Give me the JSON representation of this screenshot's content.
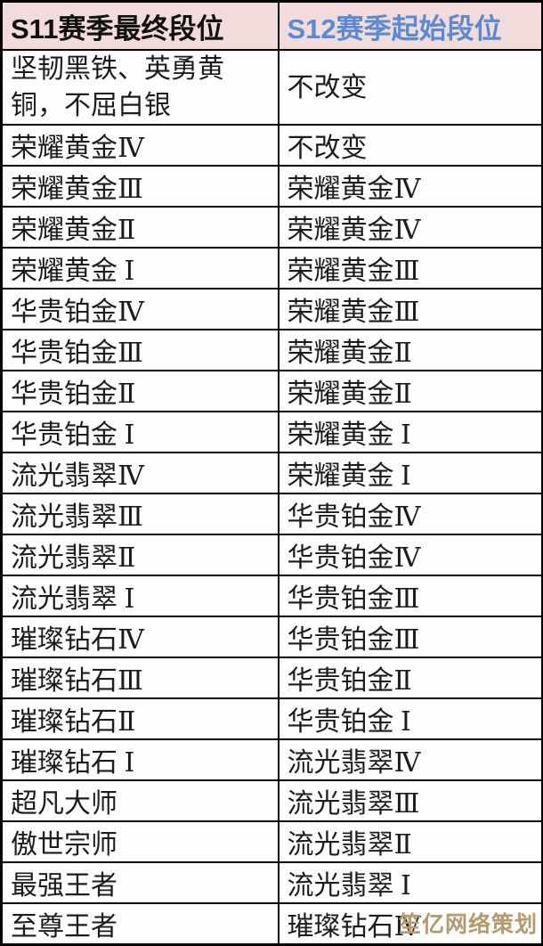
{
  "table": {
    "headers": {
      "s11": "S11赛季最终段位",
      "s12": "S12赛季起始段位"
    },
    "rows": [
      {
        "s11": "坚韧黑铁、英勇黄铜，不屈白银",
        "s12": "不改变"
      },
      {
        "s11": "荣耀黄金Ⅳ",
        "s12": "不改变"
      },
      {
        "s11": "荣耀黄金Ⅲ",
        "s12": "荣耀黄金Ⅳ"
      },
      {
        "s11": "荣耀黄金Ⅱ",
        "s12": "荣耀黄金Ⅳ"
      },
      {
        "s11": "荣耀黄金 Ⅰ",
        "s12": "荣耀黄金Ⅲ"
      },
      {
        "s11": "华贵铂金Ⅳ",
        "s12": "荣耀黄金Ⅲ"
      },
      {
        "s11": "华贵铂金Ⅲ",
        "s12": "荣耀黄金Ⅱ"
      },
      {
        "s11": "华贵铂金Ⅱ",
        "s12": "荣耀黄金Ⅱ"
      },
      {
        "s11": "华贵铂金 Ⅰ",
        "s12": "荣耀黄金 Ⅰ"
      },
      {
        "s11": "流光翡翠Ⅳ",
        "s12": "荣耀黄金 Ⅰ"
      },
      {
        "s11": "流光翡翠Ⅲ",
        "s12": "华贵铂金Ⅳ"
      },
      {
        "s11": "流光翡翠Ⅱ",
        "s12": "华贵铂金Ⅳ"
      },
      {
        "s11": "流光翡翠 Ⅰ",
        "s12": "华贵铂金Ⅲ"
      },
      {
        "s11": "璀璨钻石Ⅳ",
        "s12": "华贵铂金Ⅲ"
      },
      {
        "s11": "璀璨钻石Ⅲ",
        "s12": "华贵铂金Ⅱ"
      },
      {
        "s11": "璀璨钻石Ⅱ",
        "s12": "华贵铂金 Ⅰ"
      },
      {
        "s11": "璀璨钻石 Ⅰ",
        "s12": "流光翡翠Ⅳ"
      },
      {
        "s11": "超凡大师",
        "s12": "流光翡翠Ⅲ"
      },
      {
        "s11": "傲世宗师",
        "s12": "流光翡翠Ⅱ"
      },
      {
        "s11": "最强王者",
        "s12": "流光翡翠 Ⅰ"
      },
      {
        "s11": "至尊王者",
        "s12": "璀璨钻石Ⅳ"
      }
    ]
  },
  "watermark": "笙亿网络策划",
  "colors": {
    "header_bg": "#f2dcdb",
    "header_s11_text": "#111111",
    "header_s12_text": "#5a8ad2",
    "cell_bg": "#fdfdfd",
    "border": "#000000",
    "watermark_text": "#b49a6d"
  }
}
